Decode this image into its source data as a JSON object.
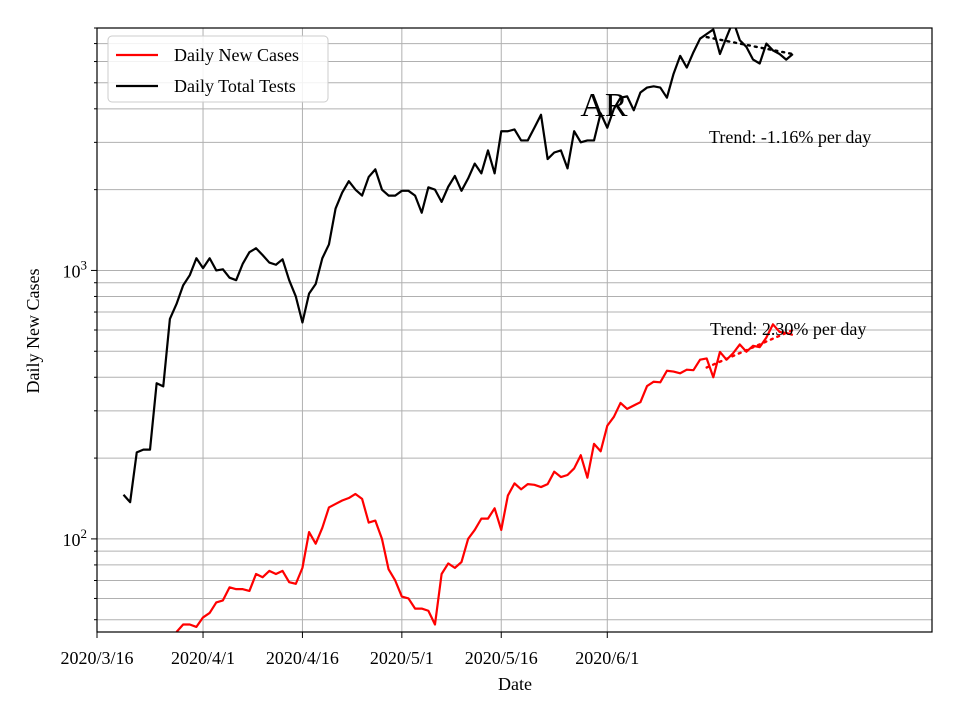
{
  "chart_data": {
    "type": "line",
    "title": "AR",
    "xlabel": "Date",
    "ylabel": "Daily New Cases",
    "y_scale": "log",
    "ylim": [
      45,
      8000
    ],
    "xlim": [
      "2020-03-16",
      "2020-07-20"
    ],
    "grid": true,
    "legend_position": "top-left",
    "x_ticks": [
      {
        "date": "2020-03-16",
        "label": "2020/3/16"
      },
      {
        "date": "2020-04-01",
        "label": "2020/4/1"
      },
      {
        "date": "2020-04-16",
        "label": "2020/4/16"
      },
      {
        "date": "2020-05-01",
        "label": "2020/5/1"
      },
      {
        "date": "2020-05-16",
        "label": "2020/5/16"
      },
      {
        "date": "2020-06-01",
        "label": "2020/6/1"
      }
    ],
    "y_ticks": [
      {
        "value": 100,
        "base": "10",
        "exp": "2"
      },
      {
        "value": 1000,
        "base": "10",
        "exp": "3"
      }
    ],
    "start_date": "2020-03-20",
    "series": [
      {
        "name": "Daily New Cases",
        "color": "#ff0000",
        "values": [
          null,
          null,
          null,
          null,
          null,
          null,
          null,
          null,
          45,
          48,
          48,
          47,
          51,
          53,
          58,
          59,
          66,
          65,
          65,
          64,
          74,
          72,
          76,
          74,
          76,
          69,
          68,
          78,
          106,
          96,
          110,
          131,
          135,
          139,
          142,
          147,
          141,
          115,
          117,
          100,
          77,
          70,
          61,
          60,
          55,
          55,
          54,
          48,
          74,
          81,
          78,
          82,
          100,
          108,
          119,
          119,
          130,
          108,
          145,
          161,
          153,
          160,
          159,
          156,
          160,
          178,
          170,
          173,
          183,
          205,
          169,
          226,
          212,
          264,
          285,
          321,
          305,
          314,
          323,
          371,
          385,
          383,
          423,
          420,
          414,
          427,
          425,
          465,
          470,
          400,
          497,
          465,
          492,
          530,
          498,
          524,
          518,
          562,
          630,
          590,
          585,
          575
        ]
      },
      {
        "name": "Daily Total Tests",
        "color": "#000000",
        "values": [
          146,
          137,
          210,
          215,
          215,
          380,
          370,
          660,
          750,
          880,
          960,
          1110,
          1020,
          1110,
          1000,
          1010,
          940,
          920,
          1060,
          1170,
          1210,
          1140,
          1070,
          1050,
          1100,
          920,
          800,
          640,
          820,
          890,
          1110,
          1250,
          1700,
          1950,
          2150,
          2000,
          1900,
          2230,
          2380,
          2000,
          1900,
          1900,
          1980,
          1980,
          1900,
          1640,
          2040,
          2000,
          1800,
          2050,
          2250,
          1980,
          2200,
          2500,
          2300,
          2800,
          2300,
          3300,
          3300,
          3350,
          3050,
          3050,
          3400,
          3800,
          2600,
          2750,
          2800,
          2400,
          3300,
          3000,
          3050,
          3050,
          3850,
          3400,
          4000,
          4400,
          4450,
          3950,
          4600,
          4800,
          4850,
          4800,
          4400,
          5400,
          6300,
          5700,
          6500,
          7300,
          7600,
          7900,
          6400,
          7400,
          8500,
          7200,
          6800,
          6100,
          5900,
          7000,
          6600,
          6400,
          6100,
          6400
        ]
      }
    ],
    "trends": [
      {
        "label": "Trend: -1.16% per day",
        "series": "Daily Total Tests",
        "style": "dotted",
        "from_day": 88,
        "to_day": 101,
        "start_value": 7400,
        "end_value": 6400
      },
      {
        "label": "Trend: 2.30% per day",
        "series": "Daily New Cases",
        "style": "dotted",
        "from_day": 88,
        "to_day": 101,
        "start_value": 435,
        "end_value": 600
      }
    ]
  }
}
